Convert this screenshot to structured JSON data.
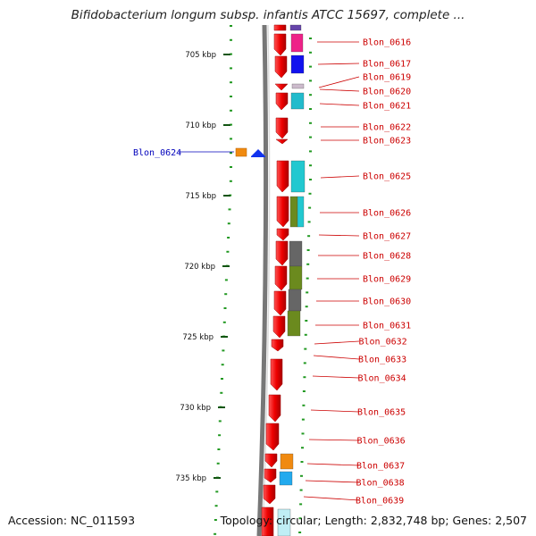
{
  "title": "Bifidobacterium longum subsp. infantis ATCC 15697, complete ...",
  "accession": "Accession: NC_011593",
  "stats": "Topology: circular; Length: 2,832,748 bp; Genes: 2,507",
  "colors": {
    "forward_gene": "#ee1111",
    "reverse_gene": "#1133ee",
    "gene_label": "#cc0000",
    "highlight_label": "#0000bb",
    "tick_major": "#115511",
    "tick_minor": "#229922"
  },
  "scale_ticks": [
    "705 kbp",
    "710 kbp",
    "715 kbp",
    "720 kbp",
    "725 kbp",
    "730 kbp",
    "735 kbp"
  ],
  "gene_labels": [
    "Blon_0616",
    "Blon_0617",
    "Blon_0619",
    "Blon_0620",
    "Blon_0621",
    "Blon_0622",
    "Blon_0623",
    "Blon_0625",
    "Blon_0626",
    "Blon_0627",
    "Blon_0628",
    "Blon_0629",
    "Blon_0630",
    "Blon_0631",
    "Blon_0632",
    "Blon_0633",
    "Blon_0634",
    "Blon_0635",
    "Blon_0636",
    "Blon_0637",
    "Blon_0638",
    "Blon_0639"
  ],
  "highlight_gene": "Blon_0624"
}
